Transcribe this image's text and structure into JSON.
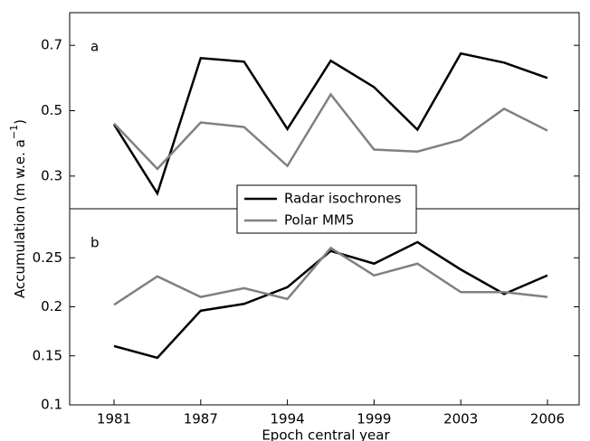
{
  "chart_data": [
    {
      "type": "line",
      "panel_label": "a",
      "ylim": [
        0.2,
        0.8
      ],
      "yticks": [
        0.3,
        0.5,
        0.7
      ],
      "series": [
        {
          "name": "Radar isochrones",
          "color": "#000000",
          "values": [
            0.458,
            0.247,
            0.661,
            0.65,
            0.444,
            0.653,
            0.572,
            0.442,
            0.675,
            0.647,
            0.6
          ]
        },
        {
          "name": "Polar MM5",
          "color": "#808080",
          "values": [
            0.461,
            0.322,
            0.464,
            0.45,
            0.331,
            0.55,
            0.381,
            0.375,
            0.411,
            0.506,
            0.439
          ]
        }
      ]
    },
    {
      "type": "line",
      "panel_label": "b",
      "ylim": [
        0.1,
        0.3
      ],
      "yticks": [
        0.1,
        0.15,
        0.2,
        0.25
      ],
      "categories": [
        "1981",
        null,
        "1987",
        null,
        "1994",
        null,
        "1999",
        null,
        "2003",
        null,
        "2006"
      ],
      "x_label": "Epoch central year",
      "series": [
        {
          "color": "#000000",
          "values": [
            0.16,
            0.148,
            0.196,
            0.203,
            0.22,
            0.257,
            0.244,
            0.266,
            0.238,
            0.213,
            0.232
          ]
        },
        {
          "color": "#808080",
          "values": [
            0.202,
            0.231,
            0.21,
            0.219,
            0.208,
            0.26,
            0.232,
            0.244,
            0.215,
            0.215,
            0.21
          ]
        }
      ]
    }
  ],
  "y_label": "Accumulation (m w.e. a",
  "y_label_sup": "−1",
  "y_label_end": ")"
}
